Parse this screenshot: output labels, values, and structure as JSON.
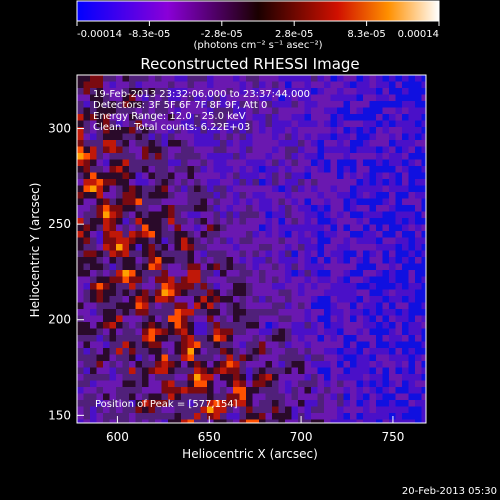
{
  "chart_data": {
    "type": "heatmap",
    "title": "Reconstructed RHESSI Image",
    "xlabel": "Heliocentric X (arcsec)",
    "ylabel": "Heliocentric Y (arcsec)",
    "xlim": [
      578,
      768
    ],
    "ylim": [
      146,
      328
    ],
    "x_ticks": [
      600,
      650,
      700,
      750
    ],
    "y_ticks": [
      150,
      200,
      250,
      300
    ],
    "colorbar": {
      "ticks": [
        "-0.00014",
        "-8.3e-05",
        "-2.8e-05",
        "2.8e-05",
        "8.3e-05",
        "0.00014"
      ],
      "label": "(photons cm⁻² s⁻¹ asec⁻²)",
      "range": [
        -0.00014,
        0.00014
      ]
    },
    "annotations": [
      "19-Feb-2013 23:32:06.000 to 23:37:44.000",
      "Detectors: 3F 5F 6F 7F 8F 9F, Att 0",
      "Energy Range: 12.0 - 25.0 keV",
      "Clean    Total counts: 6.22E+03"
    ],
    "peak_label": "Position of Peak = [577,154]",
    "peak_position": [
      577,
      154
    ]
  },
  "footer": {
    "timestamp": "20-Feb-2013 05:30"
  }
}
